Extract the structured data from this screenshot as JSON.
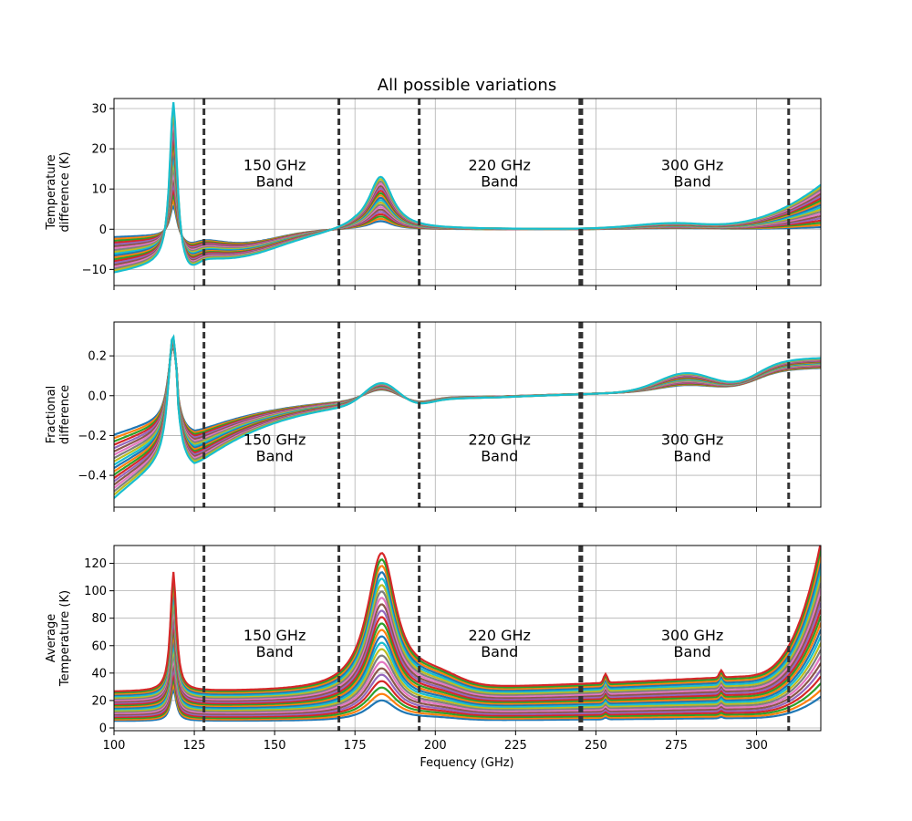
{
  "figure": {
    "title": "All possible variations",
    "xlabel": "Fequency (GHz)"
  },
  "colors": {
    "dashed_line": "#333333",
    "grid": "#b0b0b0",
    "series_palette": [
      "#1f77b4",
      "#ff7f0e",
      "#2ca02c",
      "#d62728",
      "#9467bd",
      "#8c564b",
      "#e377c2",
      "#7f7f7f",
      "#bcbd22",
      "#17becf"
    ]
  },
  "chart_data": [
    {
      "type": "line",
      "id": "temp_diff",
      "ylabel_lines": [
        "Temperature",
        "difference (K)"
      ],
      "xlim": [
        100,
        320
      ],
      "ylim": [
        -14,
        32.5
      ],
      "xticks": [
        100,
        125,
        150,
        175,
        200,
        225,
        250,
        275,
        300
      ],
      "yticks": [
        -10,
        0,
        10,
        20,
        30
      ],
      "grid": true,
      "band_lines": [
        128,
        170,
        195,
        245,
        245.6,
        310
      ],
      "band_labels": [
        {
          "line1": "150 GHz",
          "line2": "Band",
          "x": 150,
          "y": 14
        },
        {
          "line1": "220 GHz",
          "line2": "Band",
          "x": 220,
          "y": 14
        },
        {
          "line1": "300 GHz",
          "line2": "Band",
          "x": 280,
          "y": 14
        }
      ],
      "series_count": 20,
      "profile": {
        "peak118": [
          6,
          30
        ],
        "pre": [
          -2,
          -11
        ],
        "dip": [
          -3,
          -10
        ],
        "peak183": [
          2,
          13
        ],
        "low300": [
          0.3,
          1.5
        ],
        "end": [
          0.5,
          11
        ]
      }
    },
    {
      "type": "line",
      "id": "frac_diff",
      "ylabel_lines": [
        "Fractional",
        "difference"
      ],
      "xlim": [
        100,
        320
      ],
      "ylim": [
        -0.56,
        0.37
      ],
      "xticks": [
        100,
        125,
        150,
        175,
        200,
        225,
        250,
        275,
        300
      ],
      "yticks": [
        -0.4,
        -0.2,
        0.0,
        0.2
      ],
      "grid": true,
      "band_lines": [
        128,
        170,
        195,
        245,
        245.6,
        310
      ],
      "band_labels": [
        {
          "line1": "150 GHz",
          "line2": "Band",
          "x": 150,
          "y": -0.26
        },
        {
          "line1": "220 GHz",
          "line2": "Band",
          "x": 220,
          "y": -0.26
        },
        {
          "line1": "300 GHz",
          "line2": "Band",
          "x": 280,
          "y": -0.26
        }
      ],
      "series_count": 20,
      "profile": {
        "start": [
          -0.2,
          -0.52
        ],
        "peak118": [
          0.25,
          0.31
        ],
        "dip": [
          -0.2,
          -0.38
        ],
        "peak183": [
          0.05,
          0.1
        ],
        "mid280": [
          0.03,
          0.09
        ],
        "end": [
          0.1,
          0.15
        ]
      }
    },
    {
      "type": "line",
      "id": "avg_temp",
      "ylabel_lines": [
        "Average",
        "Temperature (K)"
      ],
      "xlim": [
        100,
        320
      ],
      "ylim": [
        -2,
        133
      ],
      "xticks": [
        100,
        125,
        150,
        175,
        200,
        225,
        250,
        275,
        300
      ],
      "xtick_labels": [
        "100",
        "125",
        "150",
        "175",
        "200",
        "225",
        "250",
        "275",
        "300"
      ],
      "yticks": [
        0,
        20,
        40,
        60,
        80,
        100,
        120
      ],
      "grid": true,
      "band_lines": [
        128,
        170,
        195,
        245,
        245.6,
        310
      ],
      "band_labels": [
        {
          "line1": "150 GHz",
          "line2": "Band",
          "x": 150,
          "y": 62
        },
        {
          "line1": "220 GHz",
          "line2": "Band",
          "x": 220,
          "y": 62
        },
        {
          "line1": "300 GHz",
          "line2": "Band",
          "x": 280,
          "y": 62
        }
      ],
      "series_count": 24,
      "profile": {
        "base": [
          5,
          26
        ],
        "peak118": [
          28,
          113
        ],
        "peak183": [
          20,
          127
        ],
        "end": [
          15,
          95
        ]
      }
    }
  ]
}
